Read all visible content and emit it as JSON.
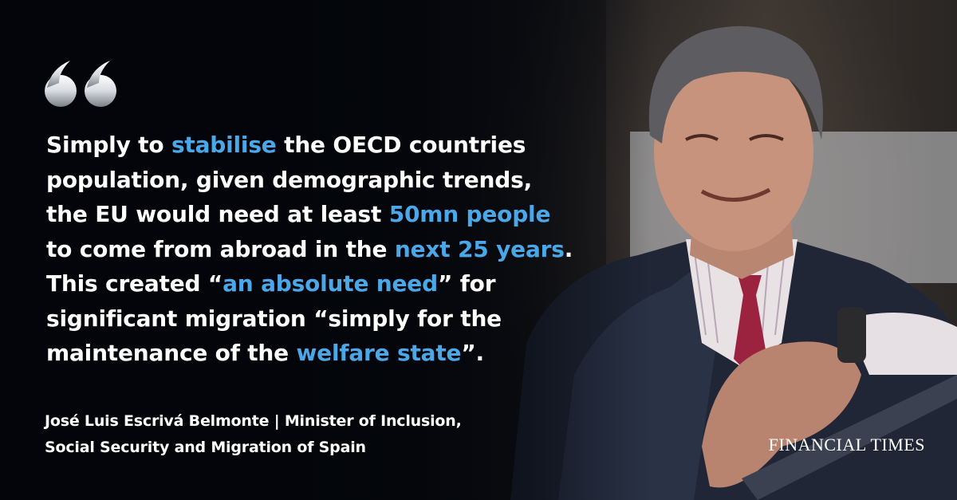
{
  "quote": {
    "segments": [
      {
        "text": "Simply to ",
        "highlight": false
      },
      {
        "text": "stabilise",
        "highlight": true
      },
      {
        "text": " the OECD countries\npopulation, given demographic trends,\nthe EU would need at least ",
        "highlight": false
      },
      {
        "text": "50mn people",
        "highlight": true
      },
      {
        "text": "\nto come from abroad in the ",
        "highlight": false
      },
      {
        "text": "next 25 years",
        "highlight": true
      },
      {
        "text": ".\nThis created “",
        "highlight": false
      },
      {
        "text": "an absolute need",
        "highlight": true
      },
      {
        "text": "” for\nsignificant migration “simply for the\nmaintenance of the ",
        "highlight": false
      },
      {
        "text": "welfare state",
        "highlight": true
      },
      {
        "text": "”.",
        "highlight": false
      }
    ]
  },
  "attribution": {
    "line1": "José Luis Escrivá Belmonte | Minister of Inclusion,",
    "line2": "Social Security and Migration of Spain"
  },
  "brand": "FINANCIAL TIMES",
  "colors": {
    "highlight": "#4aa8e8",
    "text": "#ffffff",
    "background": "#05070d"
  },
  "icons": {
    "quote_mark": "open-quote-icon",
    "photo": "speaker-portrait"
  }
}
